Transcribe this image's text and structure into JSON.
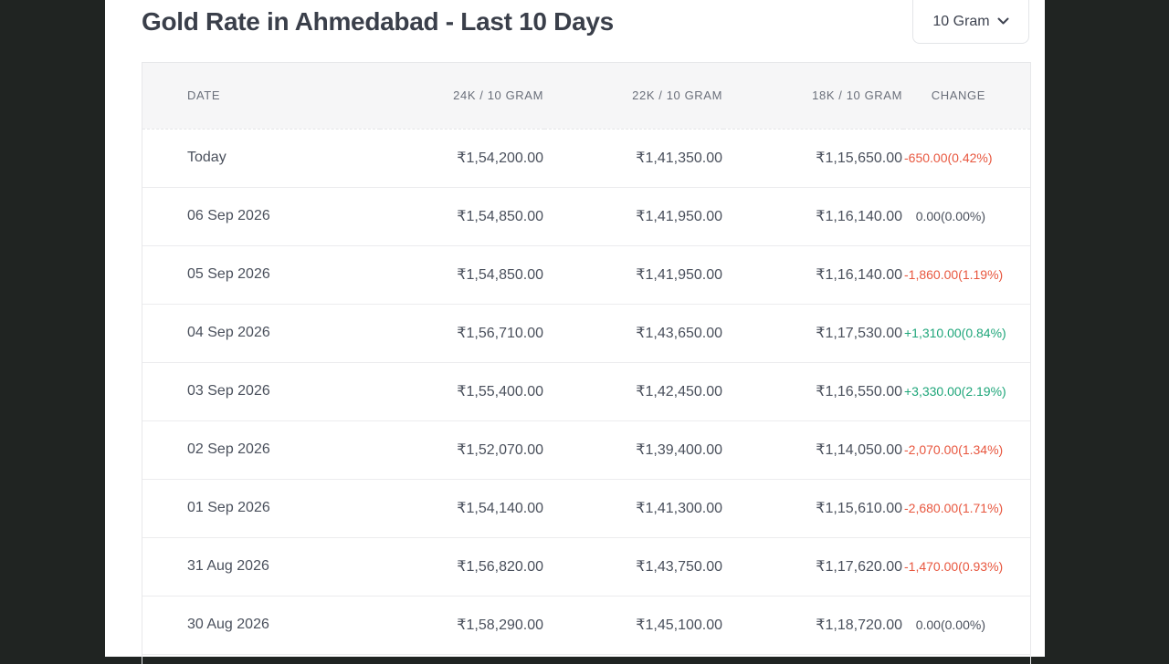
{
  "header": {
    "title": "Gold Rate in Ahmedabad - Last 10 Days",
    "unit_selected": "10 Gram",
    "unit_icon": "chevron-down-icon"
  },
  "table": {
    "columns": [
      "DATE",
      "24K / 10 GRAM",
      "22K / 10 GRAM",
      "18K / 10 GRAM",
      "CHANGE"
    ],
    "rows": [
      {
        "date": "Today",
        "k24": "₹1,54,200.00",
        "k22": "₹1,41,350.00",
        "k18": "₹1,15,650.00",
        "change": "-650.00(0.42%)",
        "trend": "neg"
      },
      {
        "date": "06 Sep 2026",
        "k24": "₹1,54,850.00",
        "k22": "₹1,41,950.00",
        "k18": "₹1,16,140.00",
        "change": "0.00(0.00%)",
        "trend": "zero"
      },
      {
        "date": "05 Sep 2026",
        "k24": "₹1,54,850.00",
        "k22": "₹1,41,950.00",
        "k18": "₹1,16,140.00",
        "change": "-1,860.00(1.19%)",
        "trend": "neg"
      },
      {
        "date": "04 Sep 2026",
        "k24": "₹1,56,710.00",
        "k22": "₹1,43,650.00",
        "k18": "₹1,17,530.00",
        "change": "+1,310.00(0.84%)",
        "trend": "pos"
      },
      {
        "date": "03 Sep 2026",
        "k24": "₹1,55,400.00",
        "k22": "₹1,42,450.00",
        "k18": "₹1,16,550.00",
        "change": "+3,330.00(2.19%)",
        "trend": "pos"
      },
      {
        "date": "02 Sep 2026",
        "k24": "₹1,52,070.00",
        "k22": "₹1,39,400.00",
        "k18": "₹1,14,050.00",
        "change": "-2,070.00(1.34%)",
        "trend": "neg"
      },
      {
        "date": "01 Sep 2026",
        "k24": "₹1,54,140.00",
        "k22": "₹1,41,300.00",
        "k18": "₹1,15,610.00",
        "change": "-2,680.00(1.71%)",
        "trend": "neg"
      },
      {
        "date": "31 Aug 2026",
        "k24": "₹1,56,820.00",
        "k22": "₹1,43,750.00",
        "k18": "₹1,17,620.00",
        "change": "-1,470.00(0.93%)",
        "trend": "neg"
      },
      {
        "date": "30 Aug 2026",
        "k24": "₹1,58,290.00",
        "k22": "₹1,45,100.00",
        "k18": "₹1,18,720.00",
        "change": "0.00(0.00%)",
        "trend": "zero"
      }
    ]
  },
  "colors": {
    "negative": "#e8573f",
    "positive": "#1fa67a",
    "background": "#202422"
  }
}
